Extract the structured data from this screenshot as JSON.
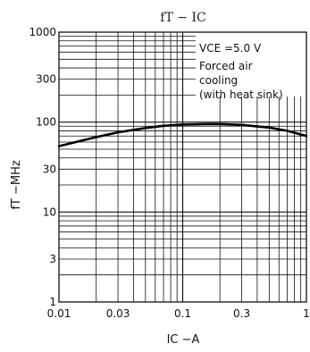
{
  "chart_data": {
    "type": "line",
    "title": "fT − IC",
    "xlabel": "IC −A",
    "ylabel": "fT −MHz",
    "x_scale": "log",
    "y_scale": "log",
    "xlim": [
      0.01,
      1
    ],
    "ylim": [
      1,
      1000
    ],
    "grid": true,
    "x_ticks": [
      {
        "value": 0.01,
        "label": "0.01"
      },
      {
        "value": 0.03,
        "label": "0.03"
      },
      {
        "value": 0.1,
        "label": "0.1"
      },
      {
        "value": 0.3,
        "label": "0.3"
      },
      {
        "value": 1,
        "label": "1"
      }
    ],
    "y_ticks": [
      {
        "value": 1,
        "label": "1"
      },
      {
        "value": 3,
        "label": "3"
      },
      {
        "value": 10,
        "label": "10"
      },
      {
        "value": 30,
        "label": "30"
      },
      {
        "value": 100,
        "label": "100"
      },
      {
        "value": 300,
        "label": "300"
      },
      {
        "value": 1000,
        "label": "1000"
      }
    ],
    "annotation": {
      "vce_text": "VCE =5.0 V",
      "line2": "Forced air",
      "line3": "cooling",
      "line4": "(with heat sink)"
    },
    "series": [
      {
        "x": [
          0.01,
          0.015,
          0.02,
          0.03,
          0.05,
          0.07,
          0.1,
          0.15,
          0.2,
          0.3,
          0.5,
          0.7,
          1.0
        ],
        "y": [
          54,
          62,
          68,
          77,
          86,
          91,
          94,
          95,
          95,
          93,
          87,
          80,
          70
        ]
      }
    ]
  }
}
